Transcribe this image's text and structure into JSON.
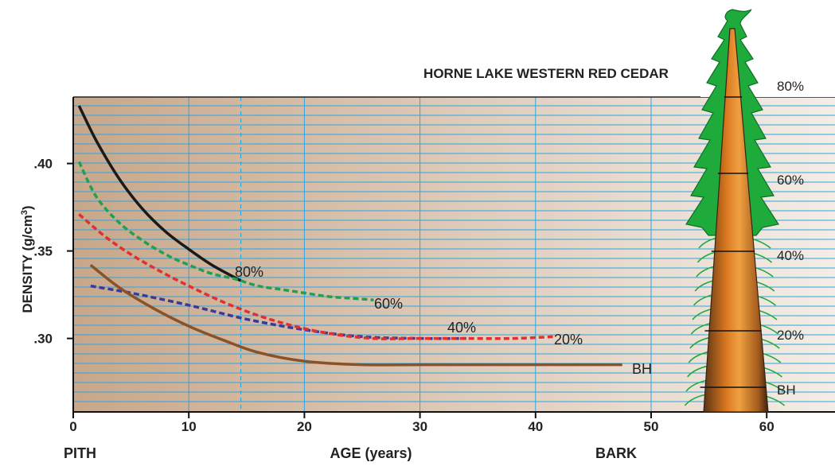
{
  "chart_data": {
    "type": "line",
    "title": "HORNE LAKE WESTERN RED CEDAR",
    "xlabel": "AGE (years)",
    "ylabel": "DENSITY (g/cm³)",
    "xlim": [
      0,
      65
    ],
    "ylim": [
      0.258,
      0.438
    ],
    "x_ticks": [
      "0",
      "10",
      "20",
      "30",
      "40",
      "50",
      "60"
    ],
    "y_ticks": [
      {
        "value": 0.3,
        "label": ".30"
      },
      {
        "value": 0.35,
        "label": ".35"
      },
      {
        "value": 0.4,
        "label": ".40"
      }
    ],
    "x_extremes": {
      "left": "PITH",
      "right": "BARK"
    },
    "grid": true,
    "series": [
      {
        "name": "80%",
        "color": "#1a1a1a",
        "dashed": false,
        "x": [
          0.5,
          2,
          4,
          6,
          8,
          10,
          12,
          14.5
        ],
        "y": [
          0.433,
          0.413,
          0.391,
          0.374,
          0.361,
          0.351,
          0.342,
          0.333
        ]
      },
      {
        "name": "60%",
        "color": "#22a050",
        "dashed": true,
        "x": [
          0.5,
          2,
          4,
          6,
          8,
          10,
          12,
          14,
          16,
          18,
          20,
          22,
          24,
          26
        ],
        "y": [
          0.401,
          0.381,
          0.366,
          0.356,
          0.348,
          0.342,
          0.337,
          0.334,
          0.33,
          0.328,
          0.326,
          0.324,
          0.323,
          0.322
        ]
      },
      {
        "name": "40%",
        "color": "#3a3a9a",
        "dashed": true,
        "x": [
          1.5,
          5,
          10,
          15,
          20,
          25,
          30,
          34
        ],
        "y": [
          0.33,
          0.326,
          0.319,
          0.311,
          0.305,
          0.301,
          0.3,
          0.3
        ]
      },
      {
        "name": "20%",
        "color": "#e03030",
        "dashed": true,
        "x": [
          0.5,
          3,
          6,
          10,
          14,
          18,
          22,
          26,
          30,
          34,
          38,
          41.5
        ],
        "y": [
          0.371,
          0.357,
          0.344,
          0.33,
          0.318,
          0.309,
          0.303,
          0.3,
          0.3,
          0.3,
          0.3,
          0.301
        ]
      },
      {
        "name": "BH",
        "color": "#8a5226",
        "dashed": false,
        "x": [
          1.5,
          4,
          7,
          10,
          13,
          16,
          20,
          25,
          30,
          35,
          40,
          47.5
        ],
        "y": [
          0.342,
          0.329,
          0.317,
          0.307,
          0.299,
          0.292,
          0.287,
          0.285,
          0.285,
          0.285,
          0.285,
          0.285
        ]
      }
    ],
    "tree_height_labels": [
      "80%",
      "60%",
      "40%",
      "20%",
      "BH"
    ]
  },
  "colors": {
    "background_left": "#c8a78a",
    "background_right": "#f4ede6",
    "grid_line": "#2aa6e2",
    "foliage": "#1faa3c",
    "trunk_core": "#e8892a",
    "trunk_edge": "#5a3416"
  }
}
